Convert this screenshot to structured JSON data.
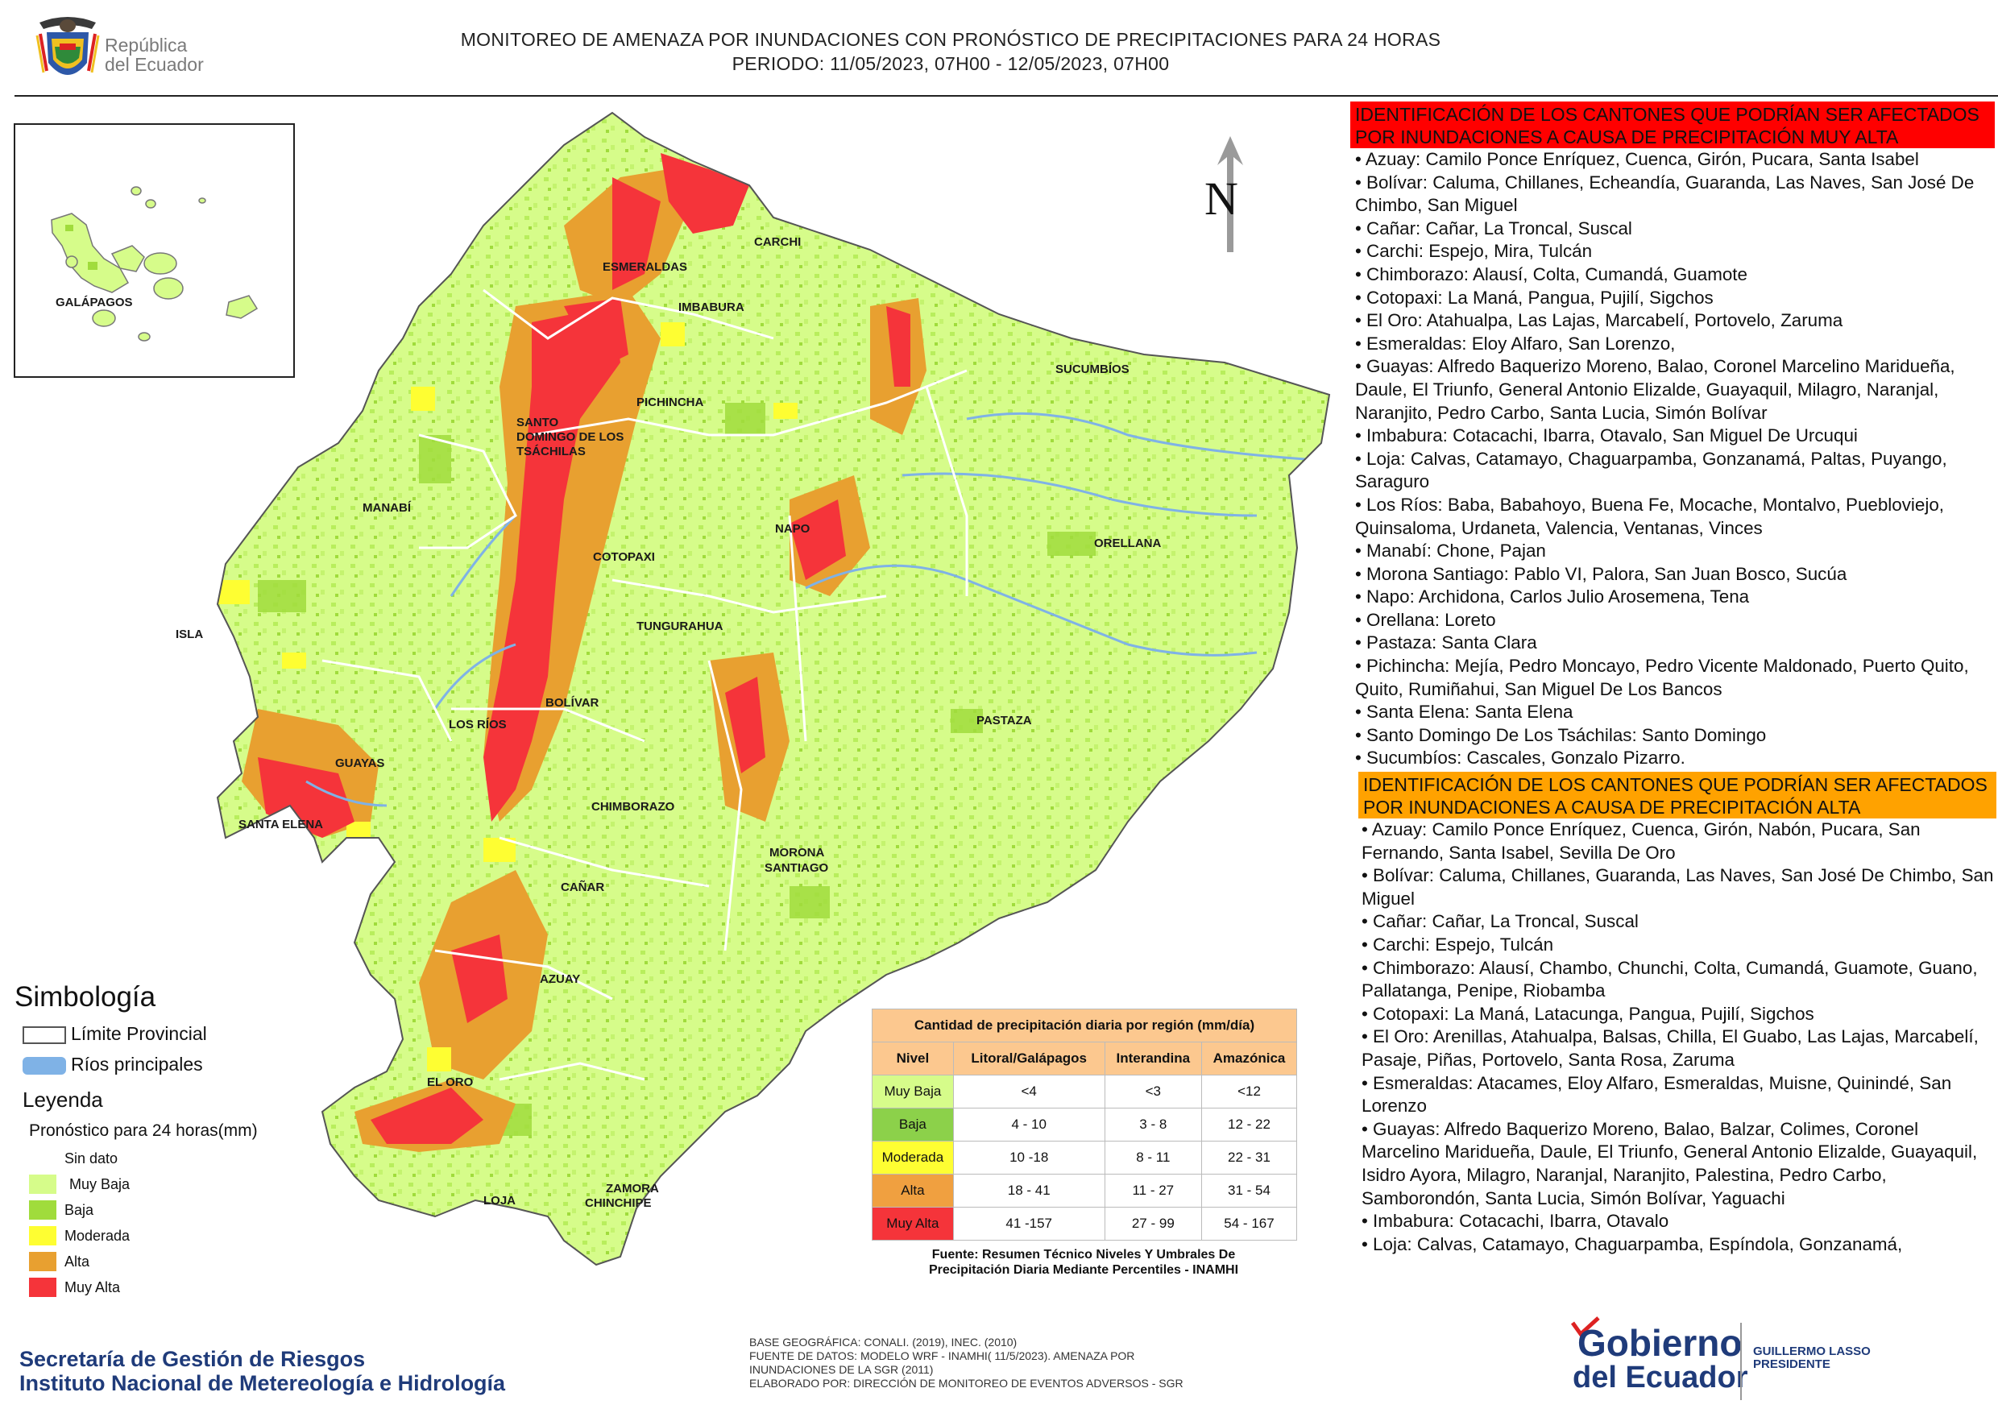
{
  "header": {
    "logo_text_line1": "República",
    "logo_text_line2": "del Ecuador",
    "title_line1": "MONITOREO DE AMENAZA POR INUNDACIONES  CON PRONÓSTICO DE  PRECIPITACIONES PARA 24 HORAS",
    "title_line2": "PERIODO: 11/05/2023, 07H00 - 12/05/2023, 07H00"
  },
  "map": {
    "north_label": "N",
    "inset_label": "GALÁPAGOS",
    "province_labels": [
      "CARCHI",
      "ESMERALDAS",
      "IMBABURA",
      "SUCUMBÍOS",
      "PICHINCHA",
      "SANTO",
      "DOMINGO DE LOS",
      "TSÁCHILAS",
      "MANABÍ",
      "NAPO",
      "ORELLANA",
      "COTOPAXI",
      "ISLA",
      "TUNGURAHUA",
      "BOLÍVAR",
      "LOS RÍOS",
      "PASTAZA",
      "GUAYAS",
      "SANTA ELENA",
      "CHIMBORAZO",
      "MORONA",
      "SANTIAGO",
      "CAÑAR",
      "AZUAY",
      "EL ORO",
      "LOJA",
      "ZAMORA",
      "CHINCHIPE"
    ],
    "colors": {
      "muy_baja": "#d6fc8a",
      "baja": "#a0dc3c",
      "moderada": "#fefe32",
      "alta": "#e8a030",
      "muy_alta": "#f5343a",
      "rivers": "#7fb2e6"
    }
  },
  "panel": {
    "muy_alta_header": "IDENTIFICACIÓN DE LOS CANTONES QUE PODRÍAN SER AFECTADOS POR INUNDACIONES  A CAUSA DE PRECIPITACIÓN MUY ALTA",
    "muy_alta_items": [
      "• Azuay: Camilo Ponce Enríquez, Cuenca, Girón, Pucara, Santa Isabel",
      "• Bolívar: Caluma, Chillanes, Echeandía, Guaranda, Las Naves, San José De Chimbo, San Miguel",
      "• Cañar: Cañar, La Troncal, Suscal",
      "• Carchi: Espejo, Mira, Tulcán",
      "• Chimborazo: Alausí, Colta, Cumandá, Guamote",
      "• Cotopaxi: La Maná, Pangua, Pujilí, Sigchos",
      "• El Oro: Atahualpa, Las Lajas, Marcabelí, Portovelo, Zaruma",
      "• Esmeraldas: Eloy Alfaro, San Lorenzo,",
      "• Guayas: Alfredo Baquerizo Moreno, Balao, Coronel Marcelino Maridueña, Daule, El Triunfo, General Antonio Elizalde, Guayaquil, Milagro, Naranjal, Naranjito, Pedro Carbo, Santa Lucia, Simón Bolívar",
      "• Imbabura: Cotacachi, Ibarra, Otavalo, San Miguel De Urcuqui",
      "• Loja: Calvas, Catamayo, Chaguarpamba, Gonzanamá, Paltas, Puyango, Saraguro",
      "• Los Ríos: Baba, Babahoyo, Buena Fe, Mocache, Montalvo, Puebloviejo, Quinsaloma, Urdaneta, Valencia, Ventanas, Vinces",
      "• Manabí: Chone, Pajan",
      "• Morona Santiago: Pablo VI, Palora, San Juan Bosco, Sucúa",
      "• Napo: Archidona, Carlos Julio Arosemena, Tena",
      "• Orellana: Loreto",
      "• Pastaza: Santa Clara",
      "• Pichincha: Mejía, Pedro Moncayo, Pedro Vicente Maldonado, Puerto Quito, Quito, Rumiñahui, San Miguel De Los Bancos",
      "• Santa Elena: Santa Elena",
      "• Santo Domingo De Los Tsáchilas: Santo Domingo",
      "• Sucumbíos: Cascales, Gonzalo Pizarro."
    ],
    "alta_header": "IDENTIFICACIÓN DE LOS CANTONES QUE  PODRÍAN SER AFECTADOS POR INUNDACIONES  A CAUSA DE PRECIPITACIÓN ALTA",
    "alta_items": [
      "• Azuay: Camilo Ponce Enríquez, Cuenca, Girón, Nabón, Pucara, San Fernando, Santa Isabel, Sevilla De Oro",
      "• Bolívar: Caluma, Chillanes, Guaranda, Las Naves, San José De Chimbo, San Miguel",
      "• Cañar: Cañar, La Troncal, Suscal",
      "• Carchi: Espejo, Tulcán",
      "• Chimborazo: Alausí, Chambo, Chunchi, Colta, Cumandá, Guamote, Guano, Pallatanga, Penipe, Riobamba",
      "• Cotopaxi: La Maná, Latacunga, Pangua, Pujilí, Sigchos",
      "• El Oro: Arenillas, Atahualpa, Balsas, Chilla, El Guabo, Las Lajas, Marcabelí, Pasaje, Piñas, Portovelo, Santa Rosa, Zaruma",
      "• Esmeraldas: Atacames, Eloy Alfaro, Esmeraldas, Muisne, Quinindé, San Lorenzo",
      "• Guayas: Alfredo Baquerizo Moreno, Balao, Balzar, Colimes, Coronel Marcelino Maridueña, Daule, El Triunfo, General Antonio Elizalde, Guayaquil, Isidro Ayora, Milagro, Naranjal, Naranjito, Palestina, Pedro Carbo, Samborondón, Santa Lucia, Simón Bolívar, Yaguachi",
      "• Imbabura: Cotacachi, Ibarra, Otavalo",
      "• Loja: Calvas, Catamayo, Chaguarpamba, Espíndola, Gonzanamá,"
    ]
  },
  "legend": {
    "simbologia": "Simbología",
    "limite": "Límite Provincial",
    "rios": "Ríos principales",
    "leyenda": "Leyenda",
    "pronostico": "Pronóstico para 24 horas(mm)",
    "categories": [
      {
        "label": "Sin dato",
        "color": "#ffffff"
      },
      {
        "label": "Muy Baja",
        "color": "#d6fc8a"
      },
      {
        "label": "Baja",
        "color": "#a0dc3c"
      },
      {
        "label": "Moderada",
        "color": "#fefe32"
      },
      {
        "label": "Alta",
        "color": "#e8a030"
      },
      {
        "label": "Muy Alta",
        "color": "#f5343a"
      }
    ]
  },
  "precip_table": {
    "title": "Cantidad de precipitación diaria por región (mm/día)",
    "headers": [
      "Nivel",
      "Litoral/Galápagos",
      "Interandina",
      "Amazónica"
    ],
    "rows": [
      {
        "nivel": "Muy Baja",
        "color": "#d6fc8a",
        "litoral": "<4",
        "interandina": "<3",
        "amazonica": "<12"
      },
      {
        "nivel": "Baja",
        "color": "#8cd14a",
        "litoral": "4 - 10",
        "interandina": "3 - 8",
        "amazonica": "12 - 22"
      },
      {
        "nivel": "Moderada",
        "color": "#fefe32",
        "litoral": "10 -18",
        "interandina": "8 - 11",
        "amazonica": "22 - 31"
      },
      {
        "nivel": "Alta",
        "color": "#f0a040",
        "litoral": "18 - 41",
        "interandina": "11 - 27",
        "amazonica": "31 - 54"
      },
      {
        "nivel": "Muy Alta",
        "color": "#f5343a",
        "litoral": "41 -157",
        "interandina": "27 - 99",
        "amazonica": "54 - 167"
      }
    ],
    "source_line1": "Fuente: Resumen Técnico Niveles Y Umbrales De",
    "source_line2": "Precipitación Diaria Mediante Percentiles - INAMHI"
  },
  "footer": {
    "base_line1": "BASE GEOGRÁFICA: CONALI. (2019), INEC. (2010)",
    "base_line2": "FUENTE DE DATOS: MODELO WRF - INAMHI( 11/5/2023).  AMENAZA POR",
    "base_line3": "INUNDACIONES DE LA SGR  (2011)",
    "base_line4": "ELABORADO POR: DIRECCIÓN DE MONITOREO DE EVENTOS ADVERSOS - SGR",
    "org_line1": "Secretaría de Gestión de Riesgos",
    "org_line2": "Instituto Nacional de Metereología e Hidrología",
    "gob_line1": "Gobierno",
    "gob_line2": "del Ecuador",
    "president_line1": "GUILLERMO LASSO",
    "president_line2": "PRESIDENTE"
  }
}
